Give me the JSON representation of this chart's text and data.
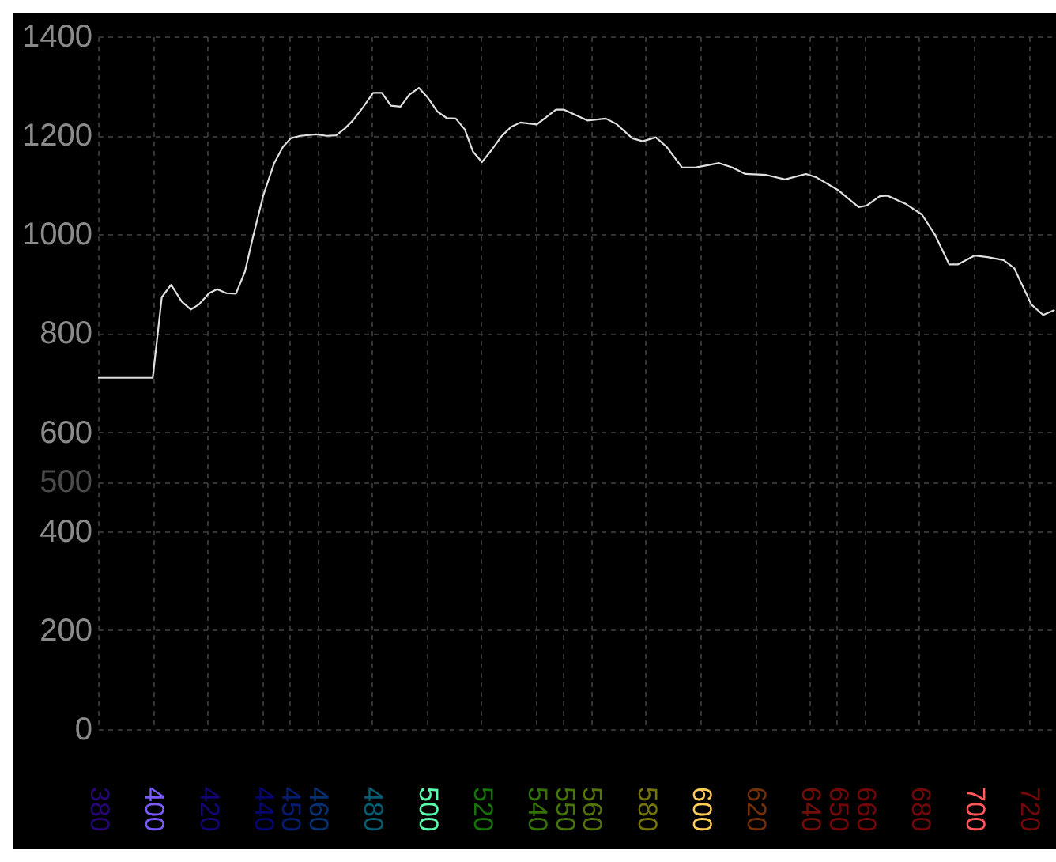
{
  "chart_data": {
    "type": "line",
    "x": [
      380,
      400,
      403.3,
      406.7,
      410.6,
      413.9,
      416.8,
      420.6,
      423.5,
      426.9,
      430.4,
      433.7,
      436.6,
      440.4,
      444.3,
      447.6,
      450.4,
      453.9,
      459.7,
      463.5,
      467,
      470.2,
      473.1,
      477,
      480.5,
      483.7,
      487,
      490.5,
      493.7,
      497.2,
      500.5,
      504,
      507.4,
      510.7,
      514,
      517,
      520.3,
      523.6,
      527.4,
      530.9,
      534.3,
      540.3,
      547.3,
      550.1,
      558.8,
      565.5,
      569.4,
      575.2,
      579,
      583.8,
      587.7,
      593.4,
      598.2,
      606.9,
      611.7,
      616.5,
      624.2,
      631,
      638.7,
      642.5,
      650.2,
      657.9,
      660.8,
      665.6,
      668.5,
      675.2,
      681,
      685.8,
      691,
      694.1,
      700.2,
      705,
      710.8,
      714.7,
      721,
      725.3,
      729.5
    ],
    "series": [
      {
        "color": "#e0e0e0",
        "values": [
          710,
          710,
          873,
          898,
          864,
          848,
          858,
          881,
          889,
          881,
          880,
          925,
          994,
          1079,
          1143,
          1177,
          1194,
          1199,
          1202,
          1199,
          1200,
          1214,
          1230,
          1258,
          1286,
          1286,
          1260,
          1258,
          1282,
          1296,
          1276,
          1248,
          1235,
          1234,
          1212,
          1167,
          1146,
          1169,
          1198,
          1217,
          1226,
          1222,
          1252,
          1252,
          1230,
          1234,
          1223,
          1194,
          1188,
          1196,
          1177,
          1135,
          1135,
          1144,
          1135,
          1122,
          1120,
          1111,
          1122,
          1115,
          1090,
          1055,
          1058,
          1077,
          1078,
          1061,
          1040,
          999,
          939,
          939,
          957,
          954,
          948,
          932,
          858,
          837,
          847
        ]
      }
    ],
    "xlim": [
      380,
      730
    ],
    "ylim": [
      0,
      1400
    ],
    "xticks": [
      380,
      400,
      420,
      440,
      450,
      460,
      480,
      500,
      520,
      540,
      550,
      560,
      580,
      600,
      620,
      640,
      650,
      660,
      680,
      700,
      720
    ],
    "yticks": [
      0,
      200,
      400,
      500,
      600,
      800,
      1000,
      1200,
      1400
    ],
    "grid": true
  }
}
